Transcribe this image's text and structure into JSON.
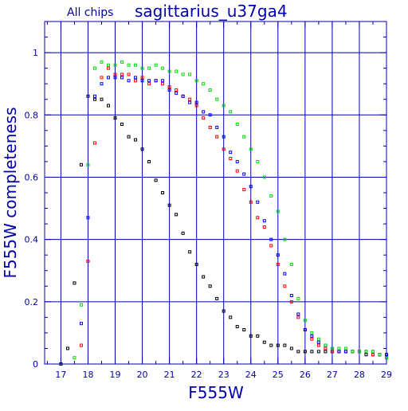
{
  "chart_data": {
    "type": "scatter",
    "title_prefix": "All chips",
    "title": "sagittarius_u37ga4",
    "xlabel": "F555W",
    "ylabel": "F555W completeness",
    "xlim": [
      16.4,
      29
    ],
    "ylim": [
      0,
      1.1
    ],
    "xticks": [
      17,
      18,
      19,
      20,
      21,
      22,
      23,
      24,
      25,
      26,
      27,
      28,
      29
    ],
    "yticks": [
      0,
      0.2,
      0.4,
      0.6,
      0.8,
      1
    ],
    "ytick_labels": [
      "0",
      "0.2",
      "0.4",
      "0.6",
      "0.8",
      "1"
    ],
    "grid": true,
    "colors": {
      "frame": "#0000aa",
      "text": "#0000aa",
      "grid": "#0000aa"
    },
    "series": [
      {
        "color": "#000000",
        "points": [
          [
            17.0,
            0.0
          ],
          [
            17.25,
            0.05
          ],
          [
            17.5,
            0.26
          ],
          [
            17.75,
            0.64
          ],
          [
            18.0,
            0.86
          ],
          [
            18.25,
            0.85
          ],
          [
            18.5,
            0.85
          ],
          [
            18.75,
            0.83
          ],
          [
            19.0,
            0.79
          ],
          [
            19.25,
            0.77
          ],
          [
            19.5,
            0.73
          ],
          [
            19.75,
            0.72
          ],
          [
            20.0,
            0.69
          ],
          [
            20.25,
            0.65
          ],
          [
            20.5,
            0.59
          ],
          [
            20.75,
            0.55
          ],
          [
            21.0,
            0.51
          ],
          [
            21.25,
            0.48
          ],
          [
            21.5,
            0.42
          ],
          [
            21.75,
            0.36
          ],
          [
            22.0,
            0.32
          ],
          [
            22.25,
            0.28
          ],
          [
            22.5,
            0.25
          ],
          [
            22.75,
            0.21
          ],
          [
            23.0,
            0.17
          ],
          [
            23.25,
            0.15
          ],
          [
            23.5,
            0.12
          ],
          [
            23.75,
            0.11
          ],
          [
            24.0,
            0.09
          ],
          [
            24.25,
            0.09
          ],
          [
            24.5,
            0.07
          ],
          [
            24.75,
            0.06
          ],
          [
            25.0,
            0.06
          ],
          [
            25.25,
            0.06
          ],
          [
            25.5,
            0.05
          ],
          [
            25.75,
            0.04
          ],
          [
            26.0,
            0.04
          ],
          [
            26.25,
            0.04
          ],
          [
            26.5,
            0.04
          ],
          [
            26.75,
            0.04
          ],
          [
            27.0,
            0.04
          ],
          [
            27.25,
            0.04
          ],
          [
            27.5,
            0.04
          ],
          [
            27.75,
            0.04
          ],
          [
            28.0,
            0.04
          ],
          [
            28.25,
            0.03
          ],
          [
            28.5,
            0.03
          ],
          [
            28.75,
            0.03
          ],
          [
            29.0,
            0.03
          ]
        ]
      },
      {
        "color": "#ff0000",
        "points": [
          [
            17.75,
            0.06
          ],
          [
            18.0,
            0.33
          ],
          [
            18.25,
            0.71
          ],
          [
            18.5,
            0.92
          ],
          [
            18.75,
            0.95
          ],
          [
            19.0,
            0.93
          ],
          [
            19.25,
            0.93
          ],
          [
            19.5,
            0.93
          ],
          [
            19.75,
            0.91
          ],
          [
            20.0,
            0.92
          ],
          [
            20.25,
            0.9
          ],
          [
            20.5,
            0.91
          ],
          [
            20.75,
            0.9
          ],
          [
            21.0,
            0.89
          ],
          [
            21.25,
            0.88
          ],
          [
            21.5,
            0.86
          ],
          [
            21.75,
            0.85
          ],
          [
            22.0,
            0.83
          ],
          [
            22.25,
            0.79
          ],
          [
            22.5,
            0.76
          ],
          [
            22.75,
            0.73
          ],
          [
            23.0,
            0.69
          ],
          [
            23.25,
            0.66
          ],
          [
            23.5,
            0.62
          ],
          [
            23.75,
            0.56
          ],
          [
            24.0,
            0.52
          ],
          [
            24.25,
            0.47
          ],
          [
            24.5,
            0.44
          ],
          [
            24.75,
            0.38
          ],
          [
            25.0,
            0.32
          ],
          [
            25.25,
            0.25
          ],
          [
            25.5,
            0.2
          ],
          [
            25.75,
            0.15
          ],
          [
            26.0,
            0.11
          ],
          [
            26.25,
            0.08
          ],
          [
            26.5,
            0.06
          ],
          [
            26.75,
            0.05
          ],
          [
            27.0,
            0.04
          ],
          [
            27.25,
            0.04
          ],
          [
            27.5,
            0.04
          ],
          [
            27.75,
            0.04
          ],
          [
            28.0,
            0.04
          ],
          [
            28.25,
            0.04
          ],
          [
            28.5,
            0.03
          ],
          [
            28.75,
            0.03
          ],
          [
            29.0,
            0.03
          ]
        ]
      },
      {
        "color": "#0000ff",
        "points": [
          [
            17.75,
            0.13
          ],
          [
            18.0,
            0.47
          ],
          [
            18.25,
            0.86
          ],
          [
            18.5,
            0.9
          ],
          [
            18.75,
            0.92
          ],
          [
            19.0,
            0.92
          ],
          [
            19.25,
            0.92
          ],
          [
            19.5,
            0.91
          ],
          [
            19.75,
            0.92
          ],
          [
            20.0,
            0.91
          ],
          [
            20.25,
            0.91
          ],
          [
            20.5,
            0.91
          ],
          [
            20.75,
            0.91
          ],
          [
            21.0,
            0.88
          ],
          [
            21.25,
            0.87
          ],
          [
            21.5,
            0.86
          ],
          [
            21.75,
            0.84
          ],
          [
            22.0,
            0.84
          ],
          [
            22.25,
            0.81
          ],
          [
            22.5,
            0.8
          ],
          [
            22.75,
            0.76
          ],
          [
            23.0,
            0.73
          ],
          [
            23.25,
            0.68
          ],
          [
            23.5,
            0.65
          ],
          [
            23.75,
            0.61
          ],
          [
            24.0,
            0.57
          ],
          [
            24.25,
            0.52
          ],
          [
            24.5,
            0.46
          ],
          [
            24.75,
            0.4
          ],
          [
            25.0,
            0.35
          ],
          [
            25.25,
            0.29
          ],
          [
            25.5,
            0.22
          ],
          [
            25.75,
            0.16
          ],
          [
            26.0,
            0.11
          ],
          [
            26.25,
            0.09
          ],
          [
            26.5,
            0.07
          ],
          [
            26.75,
            0.06
          ],
          [
            27.0,
            0.05
          ],
          [
            27.25,
            0.04
          ],
          [
            27.5,
            0.04
          ],
          [
            27.75,
            0.04
          ],
          [
            28.0,
            0.04
          ],
          [
            28.25,
            0.04
          ],
          [
            28.5,
            0.04
          ],
          [
            28.75,
            0.03
          ],
          [
            29.0,
            0.03
          ]
        ]
      },
      {
        "color": "#00dd00",
        "points": [
          [
            17.5,
            0.02
          ],
          [
            17.75,
            0.19
          ],
          [
            18.0,
            0.64
          ],
          [
            18.25,
            0.95
          ],
          [
            18.5,
            0.97
          ],
          [
            18.75,
            0.96
          ],
          [
            19.0,
            0.96
          ],
          [
            19.25,
            0.97
          ],
          [
            19.5,
            0.96
          ],
          [
            19.75,
            0.96
          ],
          [
            20.0,
            0.95
          ],
          [
            20.25,
            0.95
          ],
          [
            20.5,
            0.96
          ],
          [
            20.75,
            0.95
          ],
          [
            21.0,
            0.94
          ],
          [
            21.25,
            0.94
          ],
          [
            21.5,
            0.93
          ],
          [
            21.75,
            0.93
          ],
          [
            22.0,
            0.91
          ],
          [
            22.25,
            0.9
          ],
          [
            22.5,
            0.88
          ],
          [
            22.75,
            0.85
          ],
          [
            23.0,
            0.83
          ],
          [
            23.25,
            0.81
          ],
          [
            23.5,
            0.77
          ],
          [
            23.75,
            0.73
          ],
          [
            24.0,
            0.69
          ],
          [
            24.25,
            0.65
          ],
          [
            24.5,
            0.6
          ],
          [
            24.75,
            0.54
          ],
          [
            25.0,
            0.49
          ],
          [
            25.25,
            0.4
          ],
          [
            25.5,
            0.32
          ],
          [
            25.75,
            0.21
          ],
          [
            26.0,
            0.14
          ],
          [
            26.25,
            0.1
          ],
          [
            26.5,
            0.08
          ],
          [
            26.75,
            0.06
          ],
          [
            27.0,
            0.05
          ],
          [
            27.25,
            0.05
          ],
          [
            27.5,
            0.05
          ],
          [
            27.75,
            0.04
          ],
          [
            28.0,
            0.04
          ],
          [
            28.25,
            0.04
          ],
          [
            28.5,
            0.04
          ],
          [
            28.75,
            0.03
          ],
          [
            29.0,
            0.02
          ]
        ]
      }
    ]
  }
}
